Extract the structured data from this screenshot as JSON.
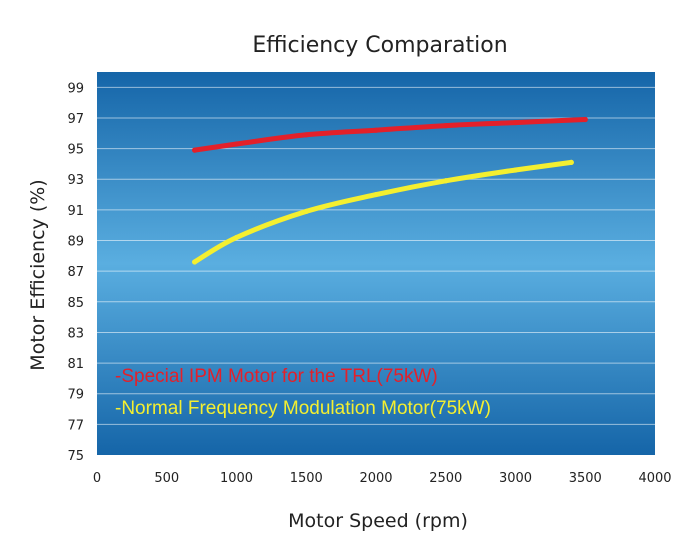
{
  "chart_data": {
    "type": "line",
    "title": "Efficiency Comparation",
    "xlabel": "Motor Speed (rpm)",
    "ylabel": "Motor Efficiency (%)",
    "xlim": [
      0,
      4000
    ],
    "ylim": [
      75,
      100
    ],
    "x_ticks": [
      0,
      500,
      1000,
      1500,
      2000,
      2500,
      3000,
      3500,
      4000
    ],
    "y_ticks": [
      75,
      77,
      79,
      81,
      83,
      85,
      87,
      89,
      91,
      93,
      95,
      97,
      99
    ],
    "grid": "horizontal",
    "legend_placement": "bottom-left",
    "background": {
      "top": "#1565a8",
      "middle": "#5aaee0",
      "bottom": "#1565a8"
    },
    "series": [
      {
        "name": "-Special IPM  Motor for the TRL(75kW)",
        "color": "#e3202a",
        "x": [
          700,
          1000,
          1500,
          2000,
          2500,
          3000,
          3500
        ],
        "values": [
          94.9,
          95.3,
          95.9,
          96.2,
          96.5,
          96.7,
          96.9
        ]
      },
      {
        "name": "-Normal Frequency Modulation Motor(75kW)",
        "color": "#f4ef30",
        "x": [
          700,
          1000,
          1500,
          2000,
          2500,
          3000,
          3400
        ],
        "values": [
          87.6,
          89.2,
          90.9,
          92.0,
          92.9,
          93.6,
          94.1
        ]
      }
    ]
  }
}
